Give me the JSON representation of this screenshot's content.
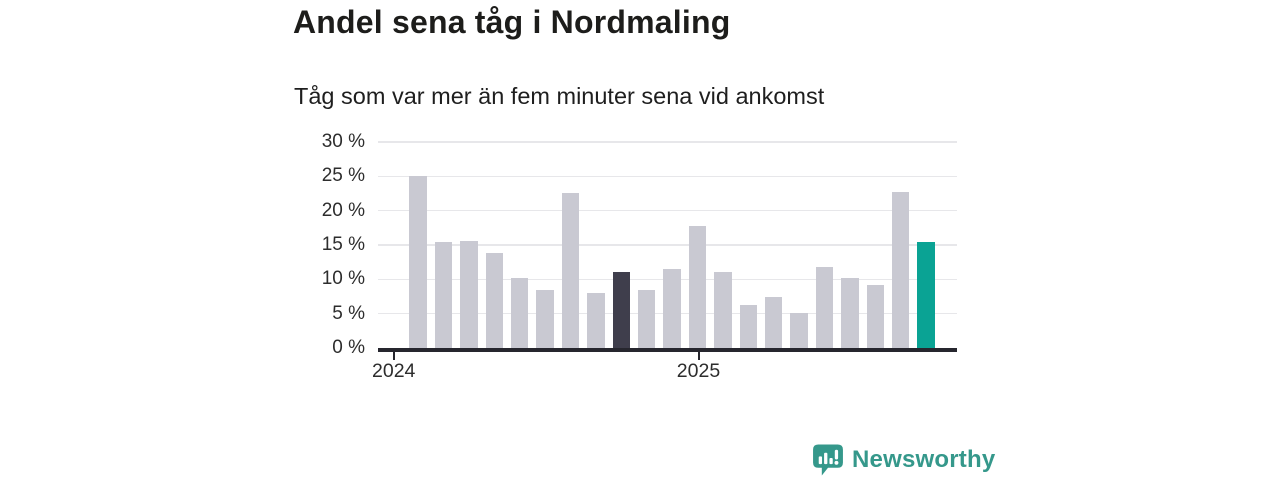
{
  "header": {
    "title": "Andel sena tåg i Nordmaling",
    "subtitle": "Tåg som var mer än fem minuter sena vid ankomst"
  },
  "chart_data": {
    "type": "bar",
    "title": "Andel sena tåg i Nordmaling",
    "subtitle": "Tåg som var mer än fem minuter sena vid ankomst",
    "unit": "%",
    "values": [
      25,
      15.4,
      15.6,
      13.8,
      10.2,
      8.5,
      22.6,
      8,
      11.1,
      8.5,
      11.5,
      17.7,
      11.1,
      6.2,
      7.5,
      5.1,
      11.8,
      10.2,
      9.2,
      22.7,
      15.5
    ],
    "ylim": [
      0,
      30
    ],
    "y_ticks": [
      "30 %",
      "25 %",
      "20 %",
      "15 %",
      "10 %",
      "5 %",
      "0 %"
    ],
    "x_ticks": [
      "2024",
      "2025"
    ],
    "grid": true,
    "legend_position": "none",
    "bars_per_year_tick_interval": 12,
    "colors": {
      "bar_default": "#c9c9d2",
      "bar_dark_highlight": "#3f3e4c",
      "bar_accent_highlight": "#0aa394",
      "gridline": "#e7e7ea",
      "axis": "#26262e",
      "tick_label": "#2d2d2d"
    },
    "highlights": [
      {
        "index": 8,
        "color_role": "bar_dark_highlight"
      },
      {
        "index": 20,
        "color_role": "bar_accent_highlight"
      }
    ]
  },
  "branding": {
    "logo_text": "Newsworthy",
    "logo_color": "#35988b",
    "logo_icon": "bar-chart-speech-bubble-icon"
  }
}
